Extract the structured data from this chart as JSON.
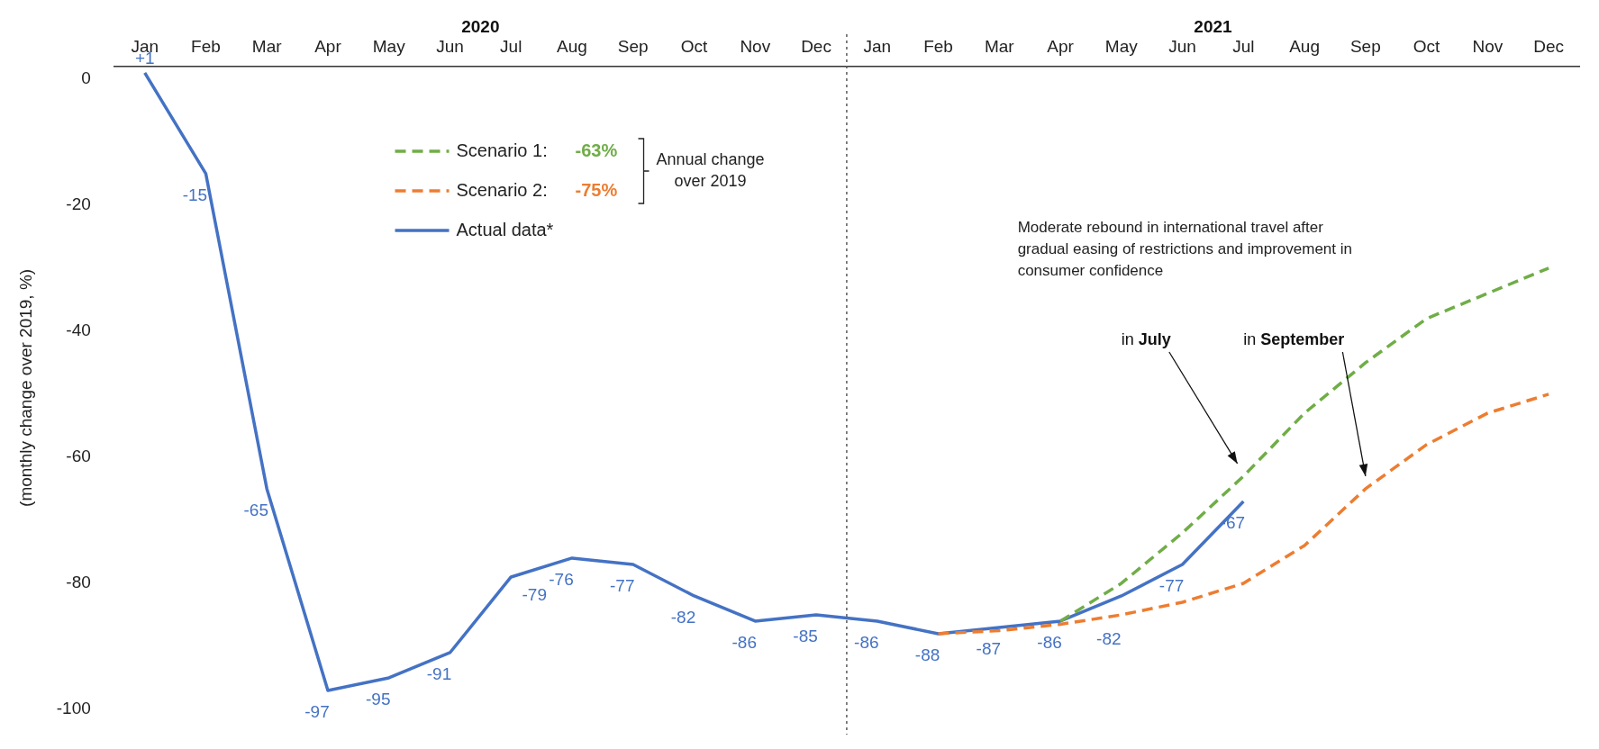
{
  "chart_data": {
    "type": "line",
    "ylabel": "(monthly change over 2019, %)",
    "categories": [
      "Jan",
      "Feb",
      "Mar",
      "Apr",
      "May",
      "Jun",
      "Jul",
      "Aug",
      "Sep",
      "Oct",
      "Nov",
      "Dec",
      "Jan",
      "Feb",
      "Mar",
      "Apr",
      "May",
      "Jun",
      "Jul",
      "Aug",
      "Sep",
      "Oct",
      "Nov",
      "Dec"
    ],
    "series": [
      {
        "name": "Scenario 1:",
        "color": "#70ad47",
        "line_style": "dashed",
        "values": [
          null,
          null,
          null,
          null,
          null,
          null,
          null,
          null,
          null,
          null,
          null,
          null,
          null,
          null,
          null,
          -86,
          -80,
          -72,
          -63,
          -53,
          -45,
          -38,
          -34,
          -30
        ]
      },
      {
        "name": "Scenario 2:",
        "color": "#ed7d31",
        "line_style": "dashed",
        "values": [
          null,
          null,
          null,
          null,
          null,
          null,
          null,
          null,
          null,
          null,
          null,
          null,
          null,
          -88,
          -87.5,
          -86.5,
          -85,
          -83,
          -80,
          -74,
          -65,
          -58,
          -53,
          -50
        ]
      },
      {
        "name": "Actual data*",
        "color": "#4472c4",
        "line_style": "solid",
        "values": [
          1,
          -15,
          -65,
          -97,
          -95,
          -91,
          -79,
          -76,
          -77,
          -82,
          -86,
          -85,
          -86,
          -88,
          -87,
          -86,
          -82,
          -77,
          -67,
          null,
          null,
          null,
          null,
          null
        ],
        "value_labels": [
          "+1",
          "-15",
          "-65",
          "-97",
          "-95",
          "-91",
          "-79",
          "-76",
          "-77",
          "-82",
          "-86",
          "-85",
          "-86",
          "-88",
          "-87",
          "-86",
          "-82",
          "-77",
          "-67",
          null,
          null,
          null,
          null,
          null
        ]
      }
    ],
    "ylim": [
      -100,
      2
    ],
    "yticks": [
      0,
      -20,
      -40,
      -60,
      -80,
      -100
    ],
    "legend": "top left",
    "grid": false,
    "marker": "none",
    "annotations": [
      "2020",
      "2021",
      "-63%",
      "-75%",
      "Annual change over 2019",
      "Moderate rebound in international travel after gradual easing of restrictions and improvement in consumer confidence",
      "in July",
      "in September"
    ]
  }
}
